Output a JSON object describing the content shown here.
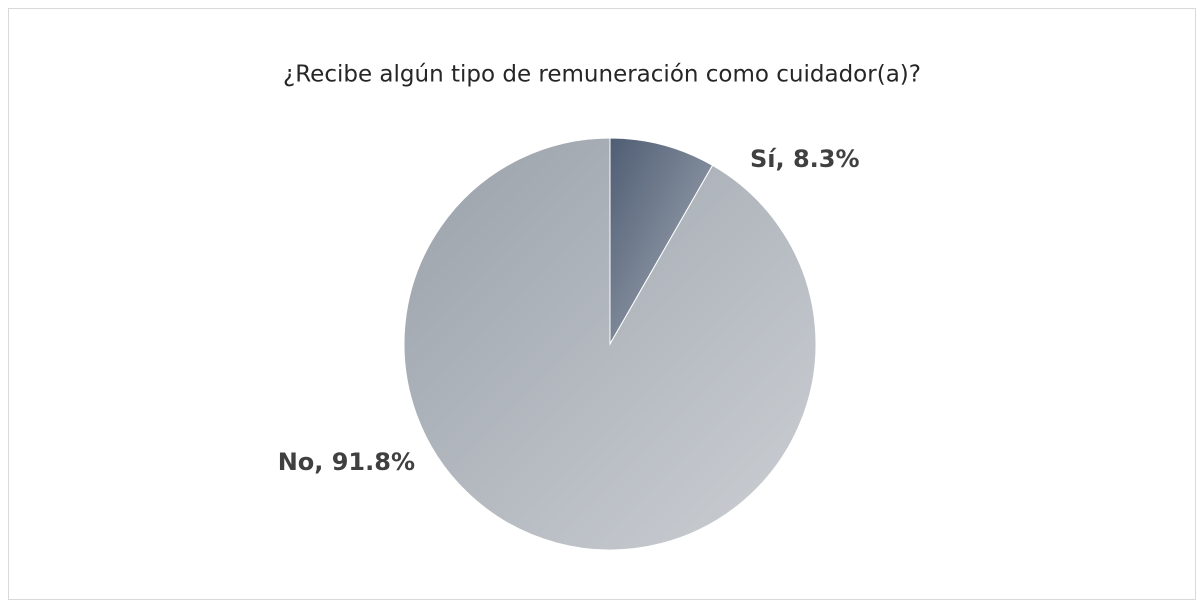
{
  "chart_data": {
    "type": "pie",
    "title": "¿Recibe algún tipo de remuneración como cuidador(a)?",
    "values": [
      8.3,
      91.8
    ],
    "value_labels": [
      "Sí, 8.3%",
      "No, 91.8%"
    ],
    "colors": [
      "#4f5d73",
      "#9aa1aa"
    ]
  }
}
